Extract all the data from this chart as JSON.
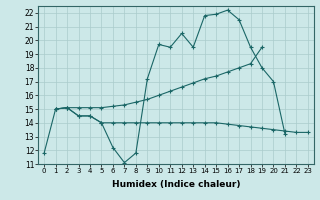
{
  "xlabel": "Humidex (Indice chaleur)",
  "bg_color": "#cce8e8",
  "grid_color": "#aacccc",
  "line_color": "#1a6666",
  "line1_x": [
    0,
    1,
    2,
    3,
    4,
    5,
    6,
    7,
    8,
    9,
    10,
    11,
    12,
    13,
    14,
    15,
    16,
    17,
    18,
    19,
    20,
    21
  ],
  "line1_y": [
    11.8,
    15.0,
    15.1,
    14.5,
    14.5,
    14.0,
    12.2,
    11.1,
    11.8,
    17.2,
    19.7,
    19.5,
    20.5,
    19.5,
    21.8,
    21.9,
    22.2,
    21.5,
    19.5,
    18.0,
    17.0,
    13.2
  ],
  "line2_x": [
    1,
    2,
    3,
    4,
    5,
    6,
    7,
    8,
    9,
    10,
    11,
    12,
    13,
    14,
    15,
    16,
    17,
    18,
    19
  ],
  "line2_y": [
    15.0,
    15.1,
    15.1,
    15.1,
    15.1,
    15.2,
    15.3,
    15.5,
    15.7,
    16.0,
    16.3,
    16.6,
    16.9,
    17.2,
    17.4,
    17.7,
    18.0,
    18.3,
    19.5
  ],
  "line3_x": [
    1,
    2,
    3,
    4,
    5,
    6,
    7,
    8,
    9,
    10,
    11,
    12,
    13,
    14,
    15,
    16,
    17,
    18,
    19,
    20,
    21,
    22,
    23
  ],
  "line3_y": [
    15.0,
    15.1,
    14.5,
    14.5,
    14.0,
    14.0,
    14.0,
    14.0,
    14.0,
    14.0,
    14.0,
    14.0,
    14.0,
    14.0,
    14.0,
    13.9,
    13.8,
    13.7,
    13.6,
    13.5,
    13.4,
    13.3,
    13.3
  ],
  "xticks": [
    0,
    1,
    2,
    3,
    4,
    5,
    6,
    7,
    8,
    9,
    10,
    11,
    12,
    13,
    14,
    15,
    16,
    17,
    18,
    19,
    20,
    21,
    22,
    23
  ],
  "yticks": [
    11,
    12,
    13,
    14,
    15,
    16,
    17,
    18,
    19,
    20,
    21,
    22
  ],
  "xlim": [
    -0.5,
    23.5
  ],
  "ylim": [
    11,
    22.5
  ]
}
